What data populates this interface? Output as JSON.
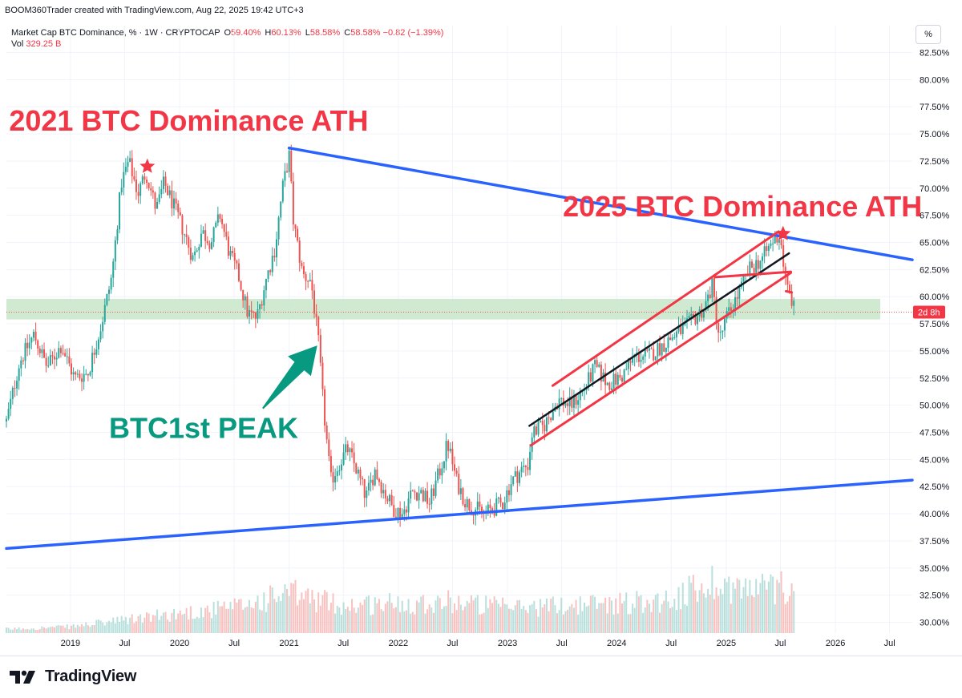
{
  "header": {
    "credit": "BOOM360Trader created with TradingView.com, Aug 22, 2025 19:42 UTC+3",
    "symbol": "Market Cap BTC Dominance, % · 1W · CRYPTOCAP",
    "ohlc": [
      {
        "label": "O",
        "value": "59.40%"
      },
      {
        "label": "H",
        "value": "60.13%"
      },
      {
        "label": "L",
        "value": "58.58%"
      },
      {
        "label": "C",
        "value": "58.58%"
      }
    ],
    "change": "−0.82 (−1.39%)",
    "vol_label": "Vol",
    "vol_value": "329.25 B",
    "scale_button": "%"
  },
  "footer": {
    "brand": "TradingView"
  },
  "colors": {
    "up": "#26a69a",
    "down": "#ef5350",
    "trendline": "#2962ff",
    "annotation": "#f23645",
    "arrow": "#089981",
    "zone": "#c8e6c9"
  },
  "chart_data": {
    "type": "candlestick",
    "timeframe": "1W",
    "y_scale": "percent",
    "ylim": [
      29.0,
      83.5
    ],
    "y_ticks": [
      "82.50%",
      "80.00%",
      "77.50%",
      "75.00%",
      "72.50%",
      "70.00%",
      "67.50%",
      "65.00%",
      "62.50%",
      "60.00%",
      "57.50%",
      "55.00%",
      "52.50%",
      "50.00%",
      "47.50%",
      "45.00%",
      "42.50%",
      "40.00%",
      "37.50%",
      "35.00%",
      "32.50%",
      "30.00%"
    ],
    "y_tick_values": [
      82.5,
      80,
      77.5,
      75,
      72.5,
      70,
      67.5,
      65,
      62.5,
      60,
      57.5,
      55,
      52.5,
      50,
      47.5,
      45,
      42.5,
      40,
      37.5,
      35,
      32.5,
      30
    ],
    "xlim": [
      "2018-06-01",
      "2026-09-15"
    ],
    "x_ticks": [
      {
        "label": "2019",
        "date": "2019-01-01"
      },
      {
        "label": "Jul",
        "date": "2019-07-01"
      },
      {
        "label": "2020",
        "date": "2020-01-01"
      },
      {
        "label": "Jul",
        "date": "2020-07-01"
      },
      {
        "label": "2021",
        "date": "2021-01-01"
      },
      {
        "label": "Jul",
        "date": "2021-07-01"
      },
      {
        "label": "2022",
        "date": "2022-01-01"
      },
      {
        "label": "Jul",
        "date": "2022-07-01"
      },
      {
        "label": "2023",
        "date": "2023-01-01"
      },
      {
        "label": "Jul",
        "date": "2023-07-01"
      },
      {
        "label": "2024",
        "date": "2024-01-01"
      },
      {
        "label": "Jul",
        "date": "2024-07-01"
      },
      {
        "label": "2025",
        "date": "2025-01-01"
      },
      {
        "label": "Jul",
        "date": "2025-07-01"
      },
      {
        "label": "2026",
        "date": "2026-01-01"
      },
      {
        "label": "Jul",
        "date": "2026-07-01"
      }
    ],
    "price_path": [
      [
        "2018-06-01",
        48.5
      ],
      [
        "2018-07-15",
        54
      ],
      [
        "2018-09-01",
        56.5
      ],
      [
        "2018-10-15",
        53.5
      ],
      [
        "2018-12-01",
        55.5
      ],
      [
        "2019-01-15",
        52.5
      ],
      [
        "2019-03-01",
        53
      ],
      [
        "2019-04-15",
        57.5
      ],
      [
        "2019-05-20",
        62
      ],
      [
        "2019-06-20",
        70.5
      ],
      [
        "2019-07-15",
        72.5
      ],
      [
        "2019-08-15",
        69.5
      ],
      [
        "2019-09-10",
        71.5
      ],
      [
        "2019-10-15",
        68
      ],
      [
        "2019-11-10",
        70.5
      ],
      [
        "2019-12-10",
        68.5
      ],
      [
        "2020-01-15",
        66
      ],
      [
        "2020-02-15",
        63.5
      ],
      [
        "2020-03-15",
        66
      ],
      [
        "2020-04-15",
        65
      ],
      [
        "2020-05-15",
        67.5
      ],
      [
        "2020-06-15",
        64
      ],
      [
        "2020-07-15",
        62
      ],
      [
        "2020-08-15",
        58.5
      ],
      [
        "2020-09-15",
        58
      ],
      [
        "2020-10-15",
        61.5
      ],
      [
        "2020-11-15",
        64.5
      ],
      [
        "2020-12-10",
        70
      ],
      [
        "2021-01-01",
        73
      ],
      [
        "2021-01-15",
        67
      ],
      [
        "2021-02-15",
        62
      ],
      [
        "2021-03-15",
        61.5
      ],
      [
        "2021-04-10",
        55.5
      ],
      [
        "2021-04-25",
        50
      ],
      [
        "2021-05-20",
        43
      ],
      [
        "2021-06-15",
        44.5
      ],
      [
        "2021-07-15",
        46
      ],
      [
        "2021-08-15",
        44
      ],
      [
        "2021-09-15",
        41.5
      ],
      [
        "2021-10-15",
        44
      ],
      [
        "2021-11-15",
        42
      ],
      [
        "2021-12-15",
        40.5
      ],
      [
        "2022-01-15",
        40
      ],
      [
        "2022-02-15",
        42
      ],
      [
        "2022-03-15",
        42
      ],
      [
        "2022-04-15",
        41
      ],
      [
        "2022-05-20",
        44
      ],
      [
        "2022-06-15",
        46.5
      ],
      [
        "2022-07-15",
        43
      ],
      [
        "2022-08-15",
        41
      ],
      [
        "2022-09-15",
        40.5
      ],
      [
        "2022-10-15",
        40
      ],
      [
        "2022-11-15",
        40.5
      ],
      [
        "2022-12-15",
        41
      ],
      [
        "2023-01-15",
        43
      ],
      [
        "2023-02-15",
        44
      ],
      [
        "2023-03-10",
        44.5
      ],
      [
        "2023-03-25",
        47.5
      ],
      [
        "2023-05-01",
        48
      ],
      [
        "2023-06-20",
        50.5
      ],
      [
        "2023-08-01",
        50
      ],
      [
        "2023-09-15",
        51.5
      ],
      [
        "2023-10-20",
        53.5
      ],
      [
        "2023-12-01",
        52
      ],
      [
        "2024-01-15",
        52.5
      ],
      [
        "2024-03-01",
        54.5
      ],
      [
        "2024-04-15",
        54.5
      ],
      [
        "2024-06-01",
        55.5
      ],
      [
        "2024-07-15",
        56.5
      ],
      [
        "2024-09-01",
        57.5
      ],
      [
        "2024-10-20",
        59
      ],
      [
        "2024-11-15",
        61
      ],
      [
        "2024-12-10",
        56
      ],
      [
        "2025-01-01",
        58
      ],
      [
        "2025-02-15",
        60.5
      ],
      [
        "2025-03-20",
        62.5
      ],
      [
        "2025-05-01",
        63.5
      ],
      [
        "2025-06-15",
        65.5
      ],
      [
        "2025-07-01",
        65.5
      ],
      [
        "2025-07-20",
        61
      ],
      [
        "2025-08-05",
        60
      ],
      [
        "2025-08-18",
        58.58
      ]
    ],
    "volume_regime": [
      [
        "2018-06-01",
        0.05
      ],
      [
        "2019-01-01",
        0.08
      ],
      [
        "2020-01-01",
        0.25
      ],
      [
        "2020-07-01",
        0.32
      ],
      [
        "2021-01-01",
        0.5
      ],
      [
        "2021-07-01",
        0.35
      ],
      [
        "2022-01-01",
        0.38
      ],
      [
        "2022-07-01",
        0.4
      ],
      [
        "2023-01-01",
        0.32
      ],
      [
        "2024-01-01",
        0.38
      ],
      [
        "2024-07-01",
        0.42
      ],
      [
        "2024-11-15",
        0.65
      ],
      [
        "2025-03-01",
        0.55
      ],
      [
        "2025-08-18",
        0.6
      ]
    ],
    "last_value": "58.58%",
    "countdown": "2d 8h",
    "horizontal_zone": {
      "from": 57.9,
      "to": 59.8
    },
    "trendlines": [
      {
        "name": "upper-resistance",
        "start": [
          "2021-01-01",
          73.7
        ],
        "end": [
          "2026-09-15",
          63.4
        ]
      },
      {
        "name": "lower-support",
        "start": [
          "2018-06-01",
          36.8
        ],
        "end": [
          "2026-09-15",
          43.1
        ]
      },
      {
        "name": "channel-upper",
        "start": [
          "2023-06-01",
          51.8
        ],
        "end": [
          "2025-06-25",
          66.0
        ]
      },
      {
        "name": "channel-lower",
        "start": [
          "2023-03-20",
          46.3
        ],
        "end": [
          "2025-08-05",
          62.2
        ]
      },
      {
        "name": "channel-mid",
        "start": [
          "2023-03-15",
          48.1
        ],
        "end": [
          "2025-07-30",
          64.0
        ]
      },
      {
        "name": "box-top",
        "start": [
          "2024-11-25",
          61.8
        ],
        "end": [
          "2025-08-05",
          62.3
        ]
      },
      {
        "name": "box-bottom",
        "start": [
          "2025-07-20",
          60.5
        ],
        "end": [
          "2025-08-08",
          60.4
        ]
      }
    ],
    "annotations": [
      {
        "text": "2021 BTC Dominance ATH",
        "anchor": [
          "2018-06-10",
          75.3
        ]
      },
      {
        "text": "2025 BTC Dominance ATH",
        "anchor": [
          "2023-07-05",
          67.4
        ]
      },
      {
        "text": "BTC1st PEAK",
        "anchor": [
          "2019-05-10",
          47.0
        ]
      }
    ],
    "markers": [
      {
        "type": "star",
        "at": [
          "2019-09-15",
          72.0
        ]
      },
      {
        "type": "star",
        "at": [
          "2025-07-10",
          65.8
        ]
      }
    ],
    "arrow": {
      "from": [
        "2020-10-05",
        49.7
      ],
      "to": [
        "2021-04-05",
        55.5
      ]
    }
  }
}
